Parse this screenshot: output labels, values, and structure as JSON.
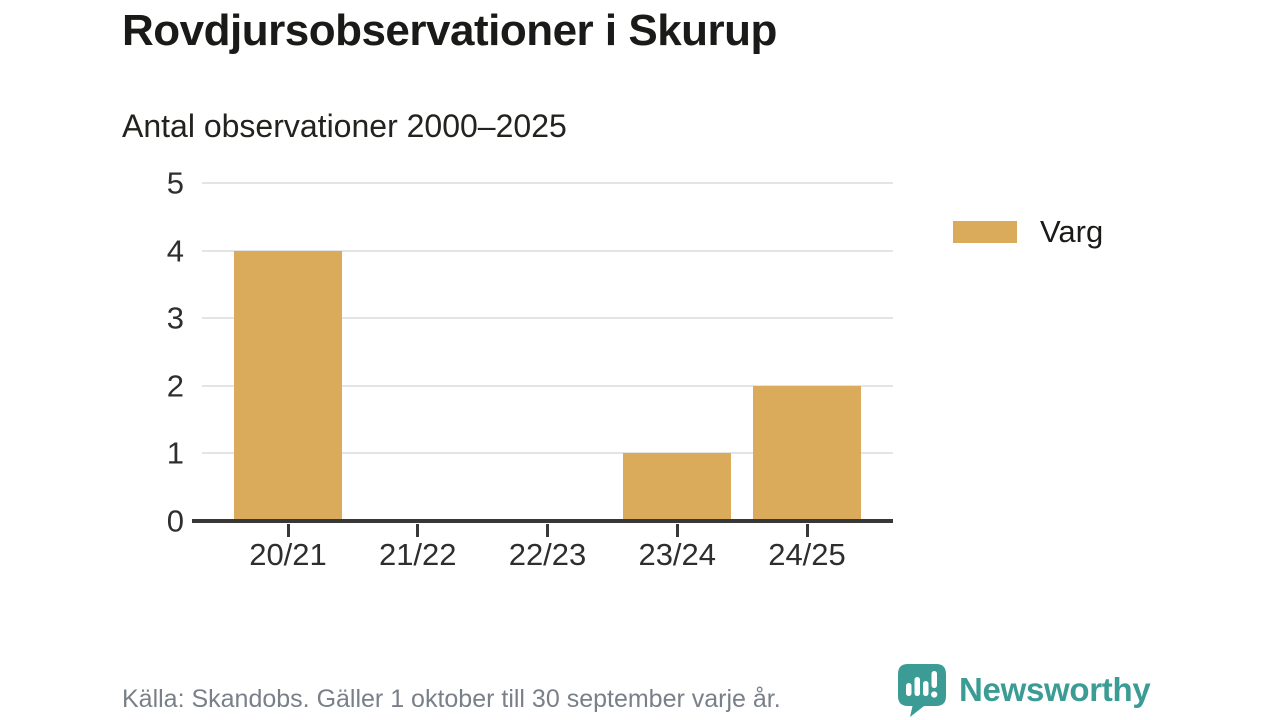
{
  "header": {
    "title": "Rovdjursobservationer i Skurup",
    "subtitle": "Antal observationer 2000–2025"
  },
  "chart_data": {
    "type": "bar",
    "categories": [
      "20/21",
      "21/22",
      "22/23",
      "23/24",
      "24/25"
    ],
    "series": [
      {
        "name": "Varg",
        "values": [
          4,
          0,
          0,
          1,
          2
        ],
        "color": "#d9ab5a"
      }
    ],
    "title": "Rovdjursobservationer i Skurup",
    "subtitle": "Antal observationer 2000–2025",
    "xlabel": "",
    "ylabel": "",
    "ylim": [
      0,
      5
    ],
    "yticks": [
      0,
      1,
      2,
      3,
      4,
      5
    ],
    "grid": "horizontal",
    "gridline_color": "#e4e4e4",
    "axis_color": "#383838",
    "legend_position": "right"
  },
  "legend": {
    "items": [
      {
        "label": "Varg",
        "color": "#d9ab5a"
      }
    ]
  },
  "footer": {
    "source": "Källa: Skandobs. Gäller 1 oktober till 30 september varje år.",
    "brand": "Newsworthy",
    "brand_color": "#3b9c95",
    "logo_icon": "speech-bubble-bar-chart-icon"
  }
}
